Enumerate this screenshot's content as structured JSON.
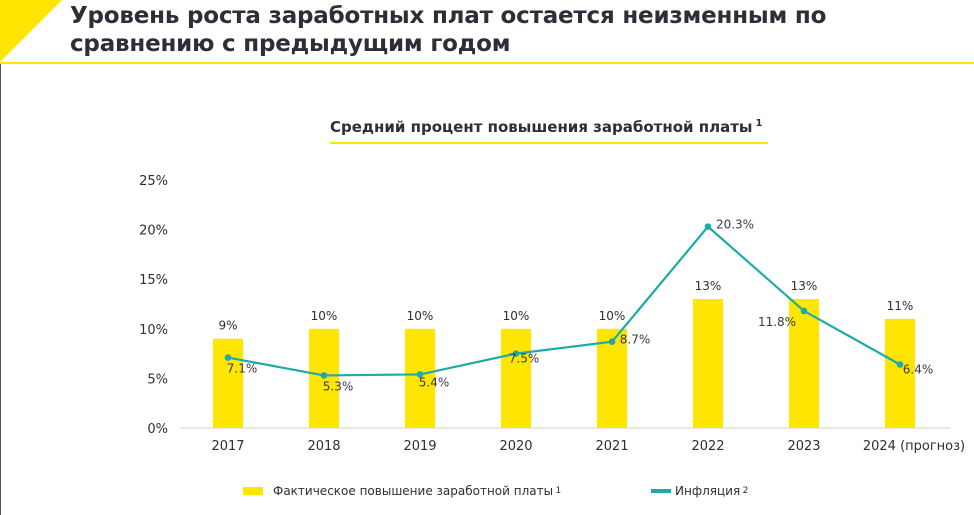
{
  "header": {
    "title": "Уровень роста заработных плат остается неизменным по сравнению с предыдущим годом"
  },
  "chart_title": {
    "text": "Средний процент повышения заработной платы",
    "footnote": "1"
  },
  "colors": {
    "accent": "#ffe600",
    "line": "#1eaaa6",
    "text": "#2e2e38"
  },
  "chart_data": {
    "type": "bar",
    "title": "Средний процент повышения заработной платы",
    "categories": [
      "2017",
      "2018",
      "2019",
      "2020",
      "2021",
      "2022",
      "2023",
      "2024 (прогноз)"
    ],
    "ylim": [
      0,
      25
    ],
    "yticks": [
      "0%",
      "5%",
      "10%",
      "15%",
      "20%",
      "25%"
    ],
    "grid": false,
    "legend_position": "bottom",
    "series": [
      {
        "name": "Фактическое повышение заработной платы",
        "footnote": "1",
        "type": "bar",
        "color": "#ffe600",
        "values": [
          9,
          10,
          10,
          10,
          10,
          13,
          13,
          11
        ],
        "labels": [
          "9%",
          "10%",
          "10%",
          "10%",
          "10%",
          "13%",
          "13%",
          "11%"
        ]
      },
      {
        "name": "Инфляция",
        "footnote": "2",
        "type": "line",
        "color": "#1eaaa6",
        "values": [
          7.1,
          5.3,
          5.4,
          7.5,
          8.7,
          20.3,
          11.8,
          6.4
        ],
        "labels": [
          "7.1%",
          "5.3%",
          "5.4%",
          "7.5%",
          "8.7%",
          "20.3%",
          "11.8%",
          "6.4%"
        ]
      }
    ]
  }
}
